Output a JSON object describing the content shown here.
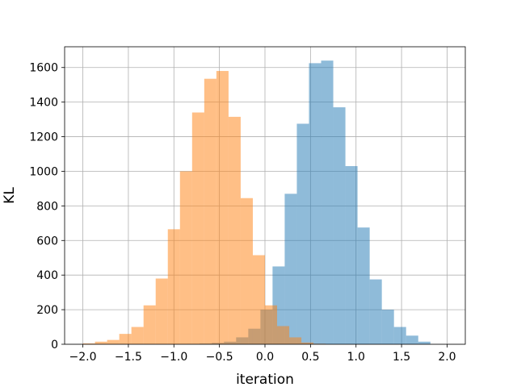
{
  "chart_data": {
    "type": "bar",
    "title": "",
    "xlabel": "iteration",
    "ylabel": "KL",
    "xlim": [
      -2.2,
      2.2
    ],
    "ylim": [
      0,
      1720
    ],
    "xticks": [
      -2.0,
      -1.5,
      -1.0,
      -0.5,
      0.0,
      0.5,
      1.0,
      1.5,
      2.0
    ],
    "xtick_labels": [
      "−2.0",
      "−1.5",
      "−1.0",
      "−0.5",
      "0.0",
      "0.5",
      "1.0",
      "1.5",
      "2.0"
    ],
    "yticks": [
      0,
      200,
      400,
      600,
      800,
      1000,
      1200,
      1400,
      1600
    ],
    "ytick_labels": [
      "0",
      "200",
      "400",
      "600",
      "800",
      "1000",
      "1200",
      "1400",
      "1600"
    ],
    "grid": true,
    "series": [
      {
        "color": "#1f77b4",
        "alpha": 0.5,
        "bin_edges": [
          -0.85,
          -0.7167,
          -0.5833,
          -0.45,
          -0.3167,
          -0.1833,
          -0.05,
          0.0833,
          0.2167,
          0.35,
          0.4833,
          0.6167,
          0.75,
          0.8833,
          1.0167,
          1.15,
          1.2833,
          1.4167,
          1.55,
          1.6833,
          1.8167
        ],
        "counts": [
          2,
          4,
          8,
          15,
          40,
          90,
          200,
          450,
          870,
          1275,
          1625,
          1640,
          1370,
          1030,
          675,
          375,
          200,
          100,
          50,
          15
        ]
      },
      {
        "color": "#ff7f0e",
        "alpha": 0.5,
        "bin_edges": [
          -2.0,
          -1.8667,
          -1.7333,
          -1.6,
          -1.4667,
          -1.3333,
          -1.2,
          -1.0667,
          -0.9333,
          -0.8,
          -0.6667,
          -0.5333,
          -0.4,
          -0.2667,
          -0.1333,
          0.0,
          0.1333,
          0.2667,
          0.4,
          0.5333,
          0.6667
        ],
        "counts": [
          5,
          15,
          25,
          60,
          100,
          225,
          380,
          665,
          1000,
          1340,
          1535,
          1580,
          1315,
          845,
          515,
          225,
          105,
          40,
          10,
          3
        ]
      }
    ]
  }
}
